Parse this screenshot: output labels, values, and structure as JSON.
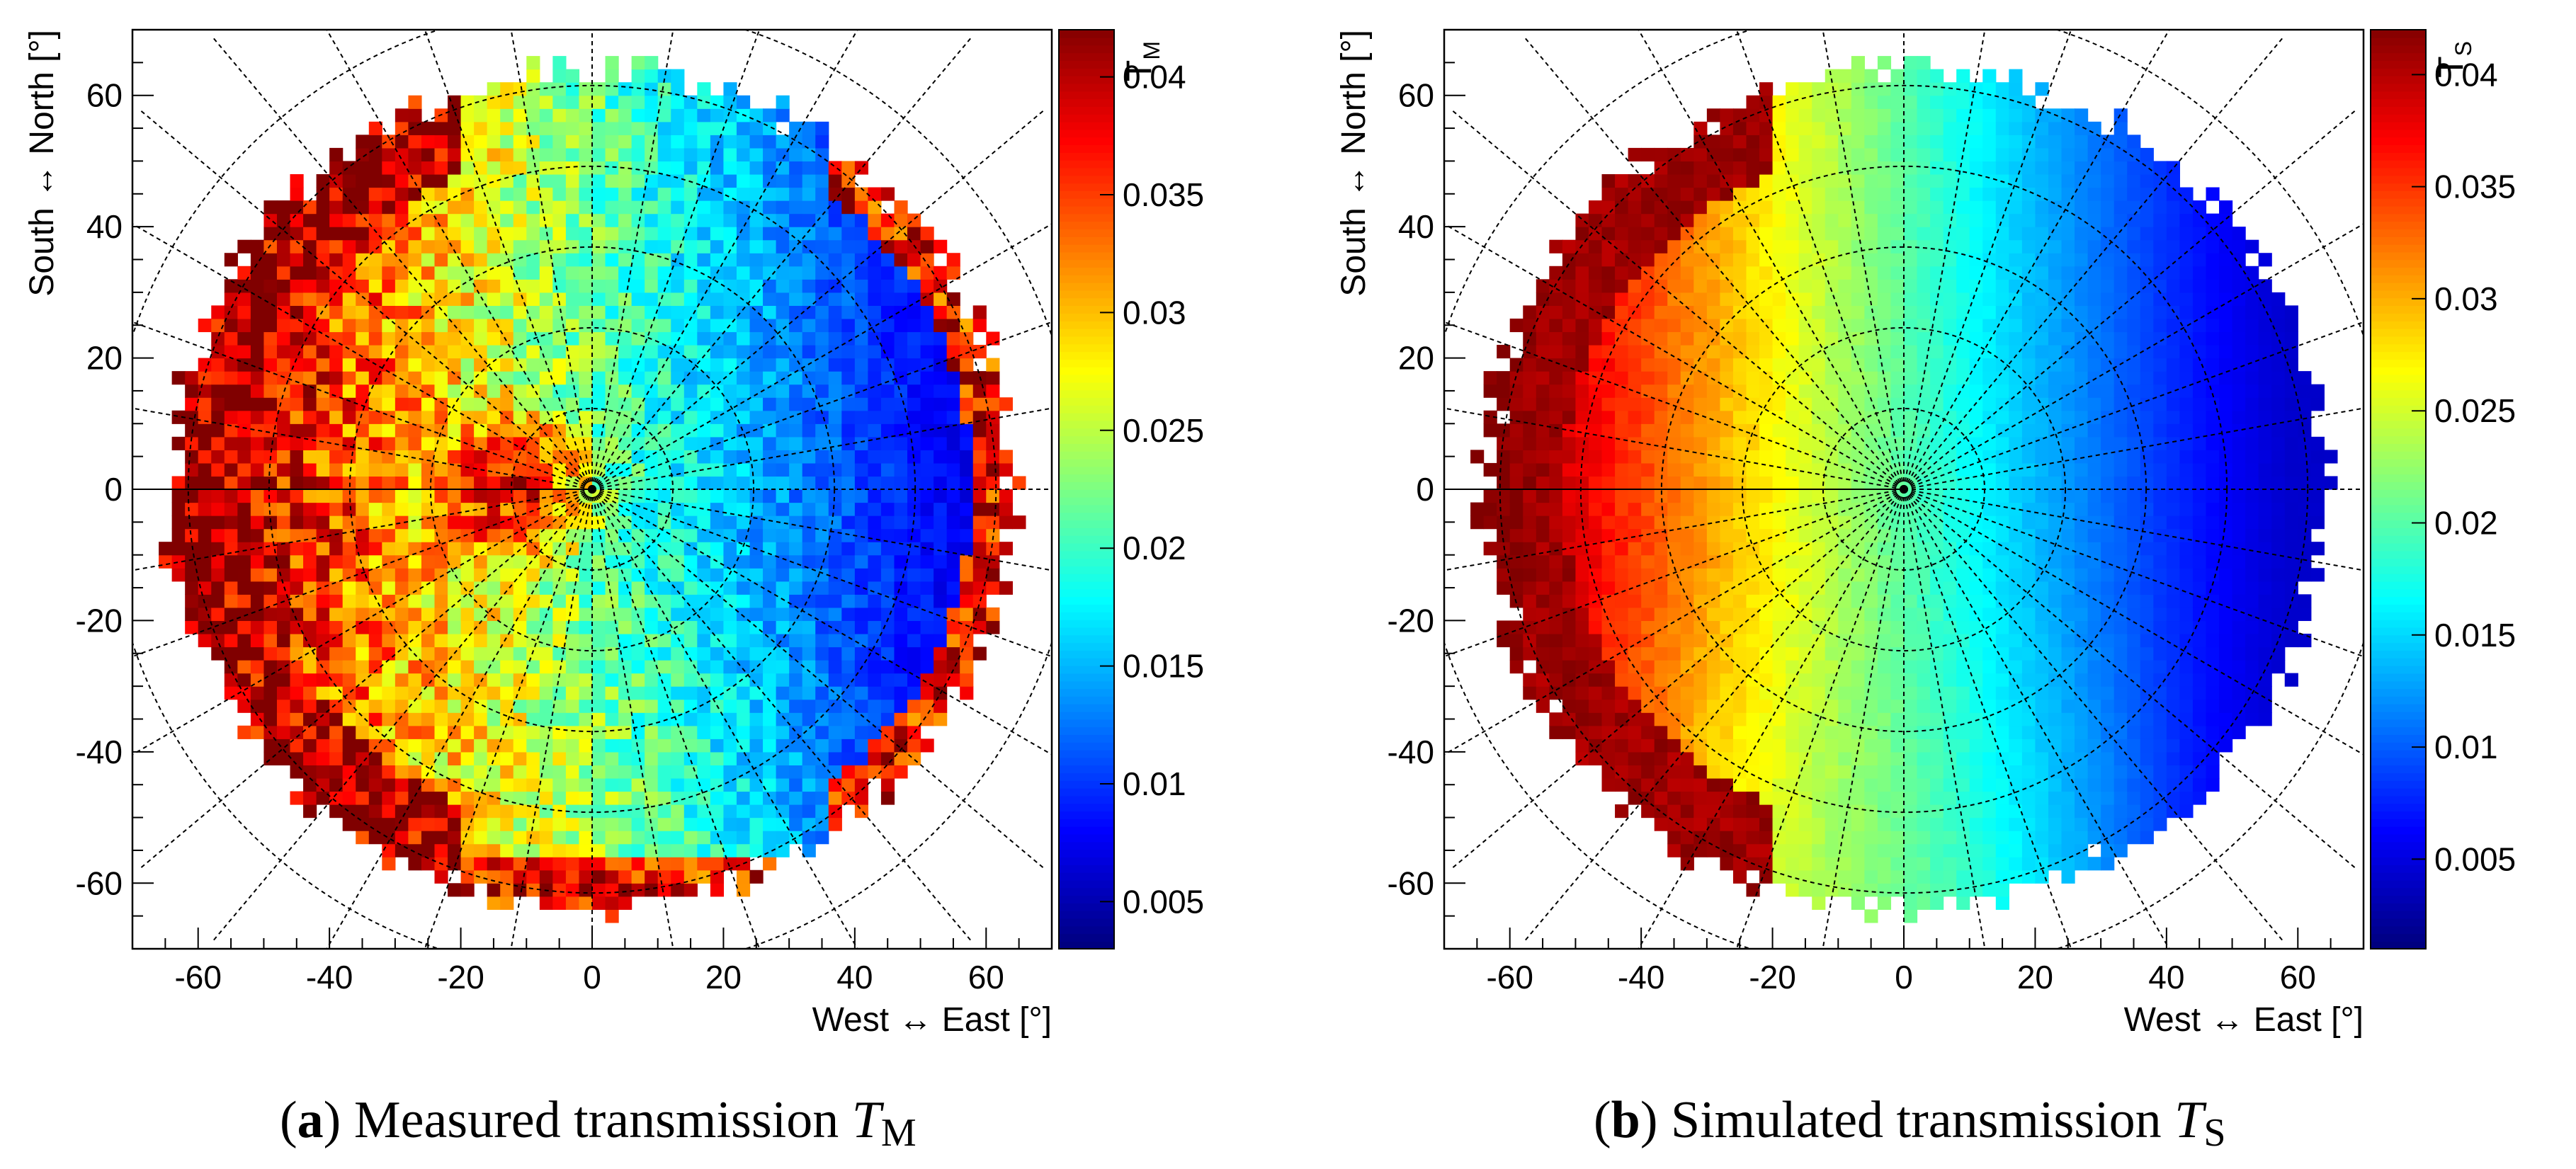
{
  "chart_data": [
    {
      "type": "heatmap",
      "panel": "a",
      "caption_label": "a",
      "caption_text": "Measured transmission",
      "caption_symbol": "T",
      "caption_subscript": "M",
      "xlabel": "West ↔ East [°]",
      "ylabel": "South ↔ North [°]",
      "zlabel": "T",
      "zlabel_sub": "M",
      "xlim": [
        -70,
        70
      ],
      "ylim": [
        -70,
        70
      ],
      "x_ticks": [
        -60,
        -40,
        -20,
        0,
        20,
        40,
        60
      ],
      "y_ticks": [
        -60,
        -40,
        -20,
        0,
        20,
        40,
        60
      ],
      "z_range": [
        0.003,
        0.042
      ],
      "z_ticks": [
        "0.005",
        "0.01",
        "0.015",
        "0.02",
        "0.025",
        "0.03",
        "0.035",
        "0.04"
      ],
      "colormap": "jet",
      "grid": "polar, dashed",
      "fov_radius_deg": 64,
      "noise": 0.18,
      "center_hotspot": true,
      "pattern_description_values": {
        "west_edge_T": 0.042,
        "north_west_T": 0.042,
        "east_T": 0.007,
        "south_T": 0.028,
        "centre_T": 0.04
      }
    },
    {
      "type": "heatmap",
      "panel": "b",
      "caption_label": "b",
      "caption_text": "Simulated transmission",
      "caption_symbol": "T",
      "caption_subscript": "S",
      "xlabel": "West ↔ East [°]",
      "ylabel": "South ↔ North [°]",
      "zlabel": "T",
      "zlabel_sub": "S",
      "xlim": [
        -70,
        70
      ],
      "ylim": [
        -70,
        70
      ],
      "x_ticks": [
        -60,
        -40,
        -20,
        0,
        20,
        40,
        60
      ],
      "y_ticks": [
        -60,
        -40,
        -20,
        0,
        20,
        40,
        60
      ],
      "z_range": [
        0.001,
        0.042
      ],
      "z_ticks": [
        "0.005",
        "0.01",
        "0.015",
        "0.02",
        "0.025",
        "0.03",
        "0.035",
        "0.04"
      ],
      "colormap": "jet",
      "grid": "polar, dashed",
      "fov_radius_deg": 64,
      "noise": 0.03,
      "center_hotspot": false,
      "pattern_description_values": {
        "west_edge_T": 0.042,
        "north_west_T": 0.035,
        "east_T": 0.004,
        "south_T": 0.022,
        "centre_T": 0.02
      }
    }
  ]
}
